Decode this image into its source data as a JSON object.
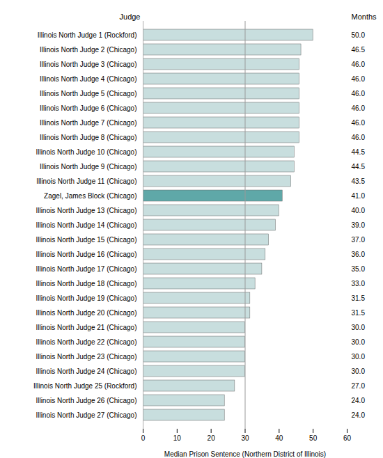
{
  "chart_data": {
    "type": "bar",
    "orientation": "horizontal",
    "categories": [
      "Illinois North Judge 1 (Rockford)",
      "Illinois North Judge 2 (Chicago)",
      "Illinois North Judge 3 (Chicago)",
      "Illinois North Judge 4 (Chicago)",
      "Illinois North Judge 5 (Chicago)",
      "Illinois North Judge 6 (Chicago)",
      "Illinois North Judge 7 (Chicago)",
      "Illinois North Judge 8 (Chicago)",
      "Illinois North Judge 10 (Chicago)",
      "Illinois North Judge 9 (Chicago)",
      "Illinois North Judge 11 (Chicago)",
      "Zagel, James Block (Chicago)",
      "Illinois North Judge 13 (Chicago)",
      "Illinois North Judge 14 (Chicago)",
      "Illinois North Judge 15 (Chicago)",
      "Illinois North Judge 16 (Chicago)",
      "Illinois North Judge 17 (Chicago)",
      "Illinois North Judge 18 (Chicago)",
      "Illinois North Judge 19 (Chicago)",
      "Illinois North Judge 20 (Chicago)",
      "Illinois North Judge 21 (Chicago)",
      "Illinois North Judge 22 (Chicago)",
      "Illinois North Judge 23 (Chicago)",
      "Illinois North Judge 24 (Chicago)",
      "Illinois North Judge 25 (Rockford)",
      "Illinois North Judge 26 (Chicago)",
      "Illinois North Judge 27 (Chicago)"
    ],
    "values": [
      50.0,
      46.5,
      46.0,
      46.0,
      46.0,
      46.0,
      46.0,
      46.0,
      44.5,
      44.5,
      43.5,
      41.0,
      40.0,
      39.0,
      37.0,
      36.0,
      35.0,
      33.0,
      31.5,
      31.5,
      30.0,
      30.0,
      30.0,
      30.0,
      27.0,
      24.0,
      24.0
    ],
    "value_labels": [
      "50.0",
      "46.5",
      "46.0",
      "46.0",
      "46.0",
      "46.0",
      "46.0",
      "46.0",
      "44.5",
      "44.5",
      "43.5",
      "41.0",
      "40.0",
      "39.0",
      "37.0",
      "36.0",
      "35.0",
      "33.0",
      "31.5",
      "31.5",
      "30.0",
      "30.0",
      "30.0",
      "30.0",
      "27.0",
      "24.0",
      "24.0"
    ],
    "data_labels": true,
    "colors": [
      "#c8dede",
      "#c8dede",
      "#c8dede",
      "#c8dede",
      "#c8dede",
      "#c8dede",
      "#c8dede",
      "#c8dede",
      "#c8dede",
      "#c8dede",
      "#c8dede",
      "#5fa8a8",
      "#c8dede",
      "#c8dede",
      "#c8dede",
      "#c8dede",
      "#c8dede",
      "#c8dede",
      "#c8dede",
      "#c8dede",
      "#c8dede",
      "#c8dede",
      "#c8dede",
      "#c8dede",
      "#c8dede",
      "#c8dede",
      "#c8dede"
    ],
    "xlabel": "Median Prison Sentence (Northern District of Illinois)",
    "ylabel": "Judge",
    "annotations": [
      "Months"
    ],
    "xlim": [
      0,
      60
    ],
    "xticks": [
      0,
      10,
      20,
      30,
      40,
      50,
      60
    ],
    "vline": 30,
    "grid": false
  }
}
